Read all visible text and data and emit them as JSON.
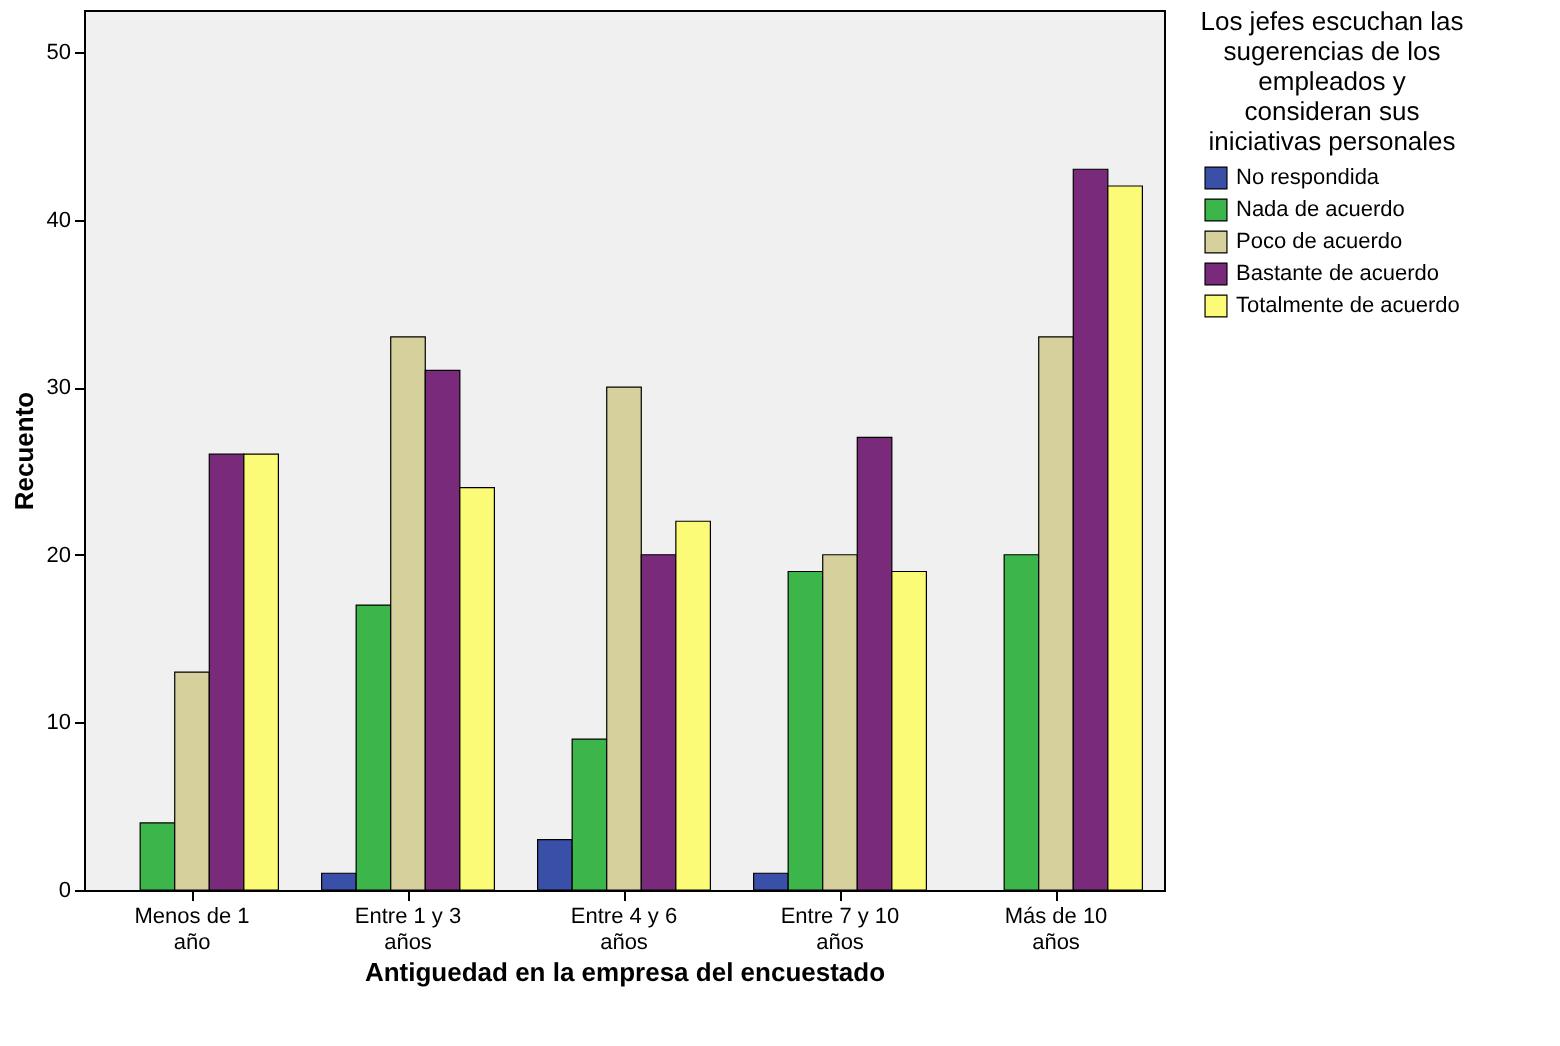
{
  "chart_data": {
    "type": "bar",
    "xlabel": "Antiguedad en la empresa del encuestado",
    "ylabel": "Recuento",
    "legend_title": "Los jefes escuchan las\nsugerencias de los\nempleados y\nconsideran sus\niniciativas personales",
    "categories": [
      "Menos de 1\naño",
      "Entre 1 y 3\naños",
      "Entre 4 y 6\naños",
      "Entre 7 y 10\naños",
      "Más de 10\naños"
    ],
    "series": [
      {
        "name": "No respondida",
        "color": "#3a4fa8",
        "values": [
          null,
          1,
          3,
          1,
          null
        ]
      },
      {
        "name": "Nada de acuerdo",
        "color": "#3cb54a",
        "values": [
          4,
          17,
          9,
          19,
          20
        ]
      },
      {
        "name": "Poco de acuerdo",
        "color": "#d5d09c",
        "values": [
          13,
          33,
          30,
          20,
          33
        ]
      },
      {
        "name": "Bastante de acuerdo",
        "color": "#7a2a7a",
        "values": [
          26,
          31,
          20,
          27,
          43
        ]
      },
      {
        "name": "Totalmente de acuerdo",
        "color": "#fbfb78",
        "values": [
          26,
          24,
          22,
          19,
          42
        ]
      }
    ],
    "ylim": [
      0,
      52.5
    ],
    "yticks": [
      0,
      10,
      20,
      30,
      40,
      50
    ],
    "grid": false,
    "legend": "right"
  }
}
